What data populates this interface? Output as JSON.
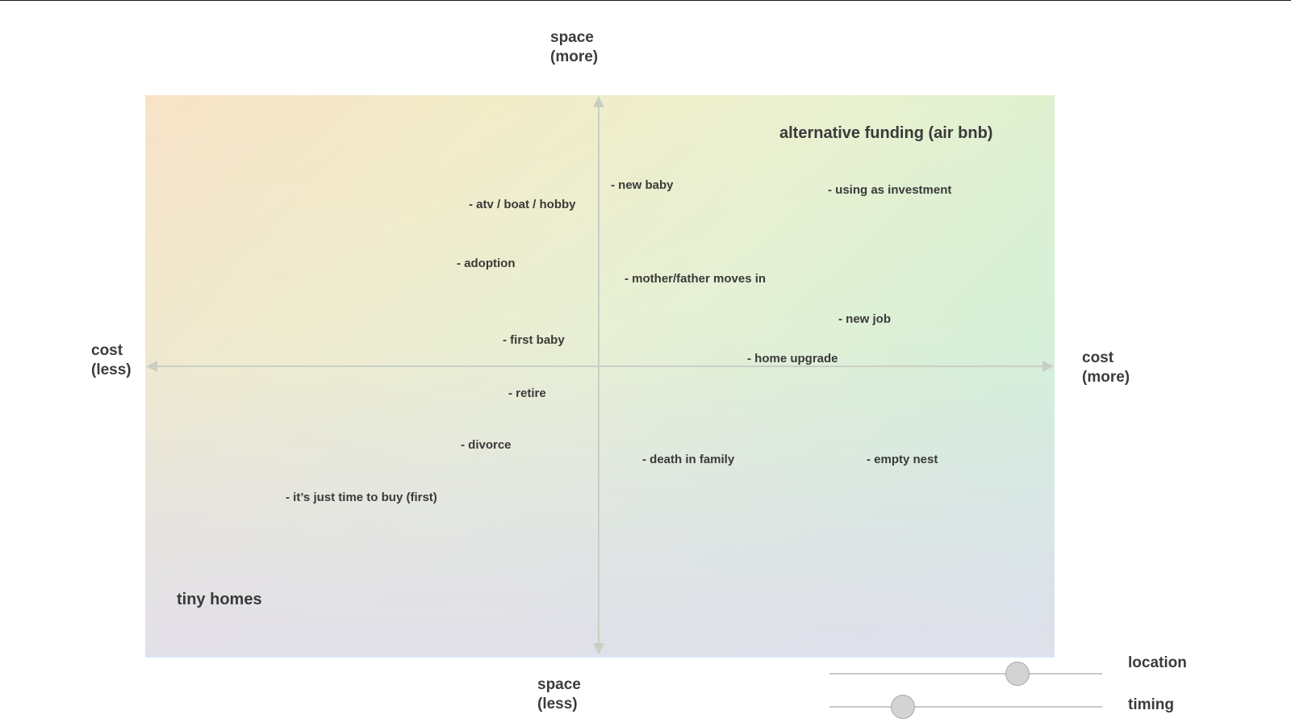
{
  "axes": {
    "top": {
      "line1": "space",
      "line2": "(more)"
    },
    "bottom": {
      "line1": "space",
      "line2": "(less)"
    },
    "left": {
      "line1": "cost",
      "line2": "(less)"
    },
    "right": {
      "line1": "cost",
      "line2": "(more)"
    }
  },
  "corners": {
    "top_right": "alternative funding (air bnb)",
    "bottom_left": "tiny homes"
  },
  "items": [
    {
      "key": "new-baby",
      "label": "- new baby"
    },
    {
      "key": "using-as-investment",
      "label": "-  using as investment"
    },
    {
      "key": "atv-boat-hobby",
      "label": "- atv / boat / hobby"
    },
    {
      "key": "adoption",
      "label": "- adoption"
    },
    {
      "key": "mother-father-moves-in",
      "label": "- mother/father moves in"
    },
    {
      "key": "new-job",
      "label": "- new job"
    },
    {
      "key": "first-baby",
      "label": "- first baby"
    },
    {
      "key": "home-upgrade",
      "label": "- home upgrade"
    },
    {
      "key": "retire",
      "label": "- retire"
    },
    {
      "key": "divorce",
      "label": "- divorce"
    },
    {
      "key": "death-in-family",
      "label": "- death in family"
    },
    {
      "key": "empty-nest",
      "label": "- empty nest"
    },
    {
      "key": "just-time-to-buy",
      "label": "- it’s just time to buy (first)"
    }
  ],
  "sliders": {
    "location": {
      "label": "location",
      "value": 0.69
    },
    "timing": {
      "label": "timing",
      "value": 0.27
    }
  }
}
